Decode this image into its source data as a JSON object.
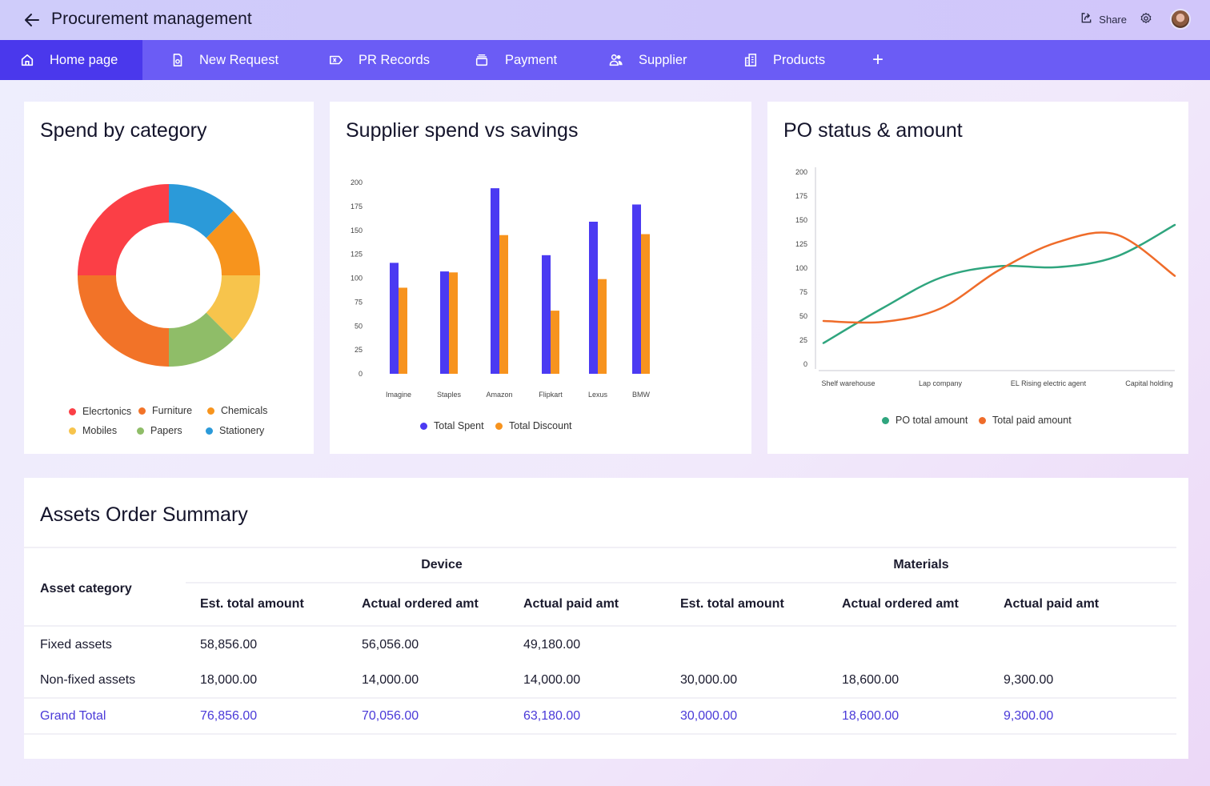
{
  "header": {
    "title": "Procurement management",
    "share_label": "Share",
    "back_icon": "arrow-left-icon",
    "share_icon": "share-icon",
    "settings_icon": "gear-icon"
  },
  "nav": {
    "items": [
      {
        "label": "Home page",
        "icon": "home-icon",
        "active": true
      },
      {
        "label": "New Request",
        "icon": "document-icon",
        "active": false
      },
      {
        "label": "PR Records",
        "icon": "tag-x-icon",
        "active": false
      },
      {
        "label": "Payment",
        "icon": "stack-icon",
        "active": false
      },
      {
        "label": "Supplier",
        "icon": "users-icon",
        "active": false
      },
      {
        "label": "Products",
        "icon": "building-icon",
        "active": false
      }
    ],
    "add_label": "+"
  },
  "colors": {
    "nav_bg": "#6b5cf5",
    "nav_active": "#4a38ec",
    "accent": "#4a3ad8",
    "spent": "#4b3af2",
    "discount": "#f7931e",
    "po_total": "#2fa57e",
    "paid": "#ef6c2a"
  },
  "chart_data": [
    {
      "type": "pie",
      "title": "Spend by category",
      "categories": [
        "Stationery",
        "Chemicals",
        "Mobiles",
        "Papers",
        "Furniture",
        "Elecrtonics"
      ],
      "values": [
        12.5,
        12.5,
        12.5,
        12.5,
        25,
        25
      ],
      "colors": [
        "#2b9ad9",
        "#f7941d",
        "#f7c44c",
        "#8fbd68",
        "#f27328",
        "#fb3f46"
      ],
      "legend": [
        {
          "label": "Elecrtonics",
          "color": "#fb3f46"
        },
        {
          "label": "Furniture",
          "color": "#f27328"
        },
        {
          "label": "Chemicals",
          "color": "#f7941d"
        },
        {
          "label": "Mobiles",
          "color": "#f7c44c"
        },
        {
          "label": "Papers",
          "color": "#8fbd68"
        },
        {
          "label": "Stationery",
          "color": "#2b9ad9"
        }
      ],
      "legend_position": "bottom"
    },
    {
      "type": "bar",
      "title": "Supplier spend vs savings",
      "categories": [
        "Imagine",
        "Staples",
        "Amazon",
        "Flipkart",
        "Lexus",
        "BMW"
      ],
      "series": [
        {
          "name": "Total Spent",
          "color": "#4b3af2",
          "values": [
            116,
            107,
            194,
            124,
            159,
            177
          ]
        },
        {
          "name": "Total Discount",
          "color": "#f7931e",
          "values": [
            90,
            106,
            145,
            66,
            99,
            146
          ]
        }
      ],
      "ylim": [
        0,
        200
      ],
      "yticks": [
        "0",
        "25",
        "50",
        "75",
        "100",
        "125",
        "150",
        "175",
        "200"
      ],
      "xlabel": "",
      "ylabel": "",
      "grid": false,
      "legend_position": "bottom"
    },
    {
      "type": "line",
      "title": "PO status & amount",
      "categories": [
        "Shelf warehouse",
        "Lap company",
        "EL Rising electric agent",
        "Capital holding"
      ],
      "series": [
        {
          "name": "PO total amount",
          "color": "#2fa57e",
          "x": [
            0,
            0.5,
            1,
            1.5,
            2,
            2.5,
            3
          ],
          "values": [
            22,
            58,
            90,
            102,
            101,
            112,
            145
          ]
        },
        {
          "name": "Total paid amount",
          "color": "#ef6c2a",
          "x": [
            0,
            0.5,
            1,
            1.5,
            2,
            2.5,
            3
          ],
          "values": [
            45,
            44,
            58,
            98,
            127,
            135,
            92
          ]
        }
      ],
      "ylim": [
        0,
        200
      ],
      "yticks": [
        "0",
        "25",
        "50",
        "75",
        "100",
        "125",
        "150",
        "175",
        "200"
      ],
      "xlabel": "",
      "ylabel": "",
      "grid": false,
      "legend_position": "bottom"
    }
  ],
  "summary": {
    "title": "Assets Order Summary",
    "row_header": "Asset category",
    "groups": [
      "Device",
      "Materials"
    ],
    "columns": [
      "Est. total amount",
      "Actual ordered amt",
      "Actual paid amt",
      "Est. total amount",
      "Actual ordered amt",
      "Actual paid amt"
    ],
    "rows": [
      {
        "label": "Fixed assets",
        "cells": [
          "58,856.00",
          "56,056.00",
          "49,180.00",
          "",
          "",
          ""
        ]
      },
      {
        "label": "Non-fixed assets",
        "cells": [
          "18,000.00",
          "14,000.00",
          "14,000.00",
          "30,000.00",
          "18,600.00",
          "9,300.00"
        ]
      }
    ],
    "total": {
      "label": "Grand Total",
      "cells": [
        "76,856.00",
        "70,056.00",
        "63,180.00",
        "30,000.00",
        "18,600.00",
        "9,300.00"
      ]
    }
  }
}
